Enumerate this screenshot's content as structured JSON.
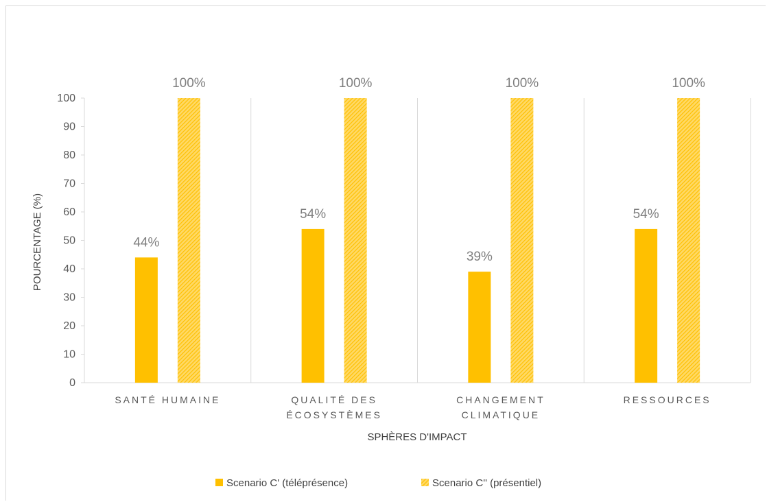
{
  "chart_data": {
    "type": "bar",
    "categories": [
      [
        "SANTÉ HUMAINE"
      ],
      [
        "QUALITÉ DES",
        "ÉCOSYSTÈMES"
      ],
      [
        "CHANGEMENT",
        "CLIMATIQUE"
      ],
      [
        "RESSOURCES"
      ]
    ],
    "series": [
      {
        "name": "Scenario C' (téléprésence)",
        "values": [
          44,
          54,
          39,
          54
        ],
        "labels": [
          "44%",
          "54%",
          "39%",
          "54%"
        ],
        "color": "#ffc000",
        "pattern": "solid"
      },
      {
        "name": "Scenario C'' (présentiel)",
        "values": [
          100,
          100,
          100,
          100
        ],
        "labels": [
          "100%",
          "100%",
          "100%",
          "100%"
        ],
        "color": "#ffc000",
        "pattern": "diagonal-hatch"
      }
    ],
    "xlabel": "SPHÈRES D'IMPACT",
    "ylabel": "POURCENTAGE (%)",
    "ylim": [
      0,
      100
    ],
    "yticks": [
      0,
      10,
      20,
      30,
      40,
      50,
      60,
      70,
      80,
      90,
      100
    ],
    "grid": "vertical category separators",
    "legend": "bottom-center"
  }
}
